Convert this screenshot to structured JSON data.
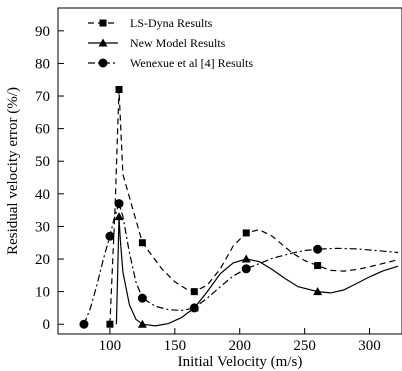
{
  "chart_data": {
    "type": "line",
    "xlabel": "Initial Velocity (m/s)",
    "ylabel": "Residual velocity error (%/)",
    "xlim": [
      60,
      325
    ],
    "ylim": [
      -3,
      97
    ],
    "xticks": [
      100,
      150,
      200,
      250,
      300
    ],
    "yticks": [
      0,
      10,
      20,
      30,
      40,
      50,
      60,
      70,
      80,
      90
    ],
    "grid": false,
    "legend_position": "top-center",
    "series": [
      {
        "name": "LS-Dyna Results",
        "line_style": "dashed",
        "marker": "square",
        "color": "#000000",
        "points": [
          [
            100,
            0
          ],
          [
            107,
            72
          ],
          [
            125,
            25
          ],
          [
            165,
            10
          ],
          [
            205,
            28
          ],
          [
            260,
            18
          ]
        ],
        "curve": [
          [
            100,
            0
          ],
          [
            104,
            36
          ],
          [
            107,
            72
          ],
          [
            110,
            46
          ],
          [
            125,
            25
          ],
          [
            140,
            17
          ],
          [
            150,
            13
          ],
          [
            160,
            10.5
          ],
          [
            165,
            10
          ],
          [
            175,
            12
          ],
          [
            185,
            17
          ],
          [
            195,
            24
          ],
          [
            205,
            28
          ],
          [
            215,
            29
          ],
          [
            225,
            27
          ],
          [
            240,
            22
          ],
          [
            250,
            19.5
          ],
          [
            260,
            18
          ],
          [
            270,
            16.5
          ],
          [
            280,
            16.3
          ],
          [
            290,
            16.8
          ],
          [
            300,
            17.6
          ],
          [
            310,
            18.6
          ],
          [
            322,
            19.8
          ]
        ]
      },
      {
        "name": "New Model Results",
        "line_style": "solid",
        "marker": "triangle",
        "color": "#000000",
        "points": [
          [
            107,
            33
          ],
          [
            125,
            0
          ],
          [
            165,
            5
          ],
          [
            205,
            20
          ],
          [
            260,
            10
          ]
        ],
        "curve": [
          [
            105,
            0
          ],
          [
            106,
            16
          ],
          [
            107,
            33
          ],
          [
            108,
            26
          ],
          [
            110,
            16
          ],
          [
            115,
            6
          ],
          [
            120,
            1.5
          ],
          [
            125,
            0
          ],
          [
            135,
            -0.5
          ],
          [
            145,
            0.2
          ],
          [
            155,
            2
          ],
          [
            165,
            5
          ],
          [
            175,
            10
          ],
          [
            185,
            15.5
          ],
          [
            195,
            18.8
          ],
          [
            205,
            20
          ],
          [
            215,
            19.2
          ],
          [
            225,
            16.8
          ],
          [
            235,
            14
          ],
          [
            245,
            11.5
          ],
          [
            260,
            10
          ],
          [
            270,
            9.6
          ],
          [
            280,
            10.5
          ],
          [
            290,
            12.5
          ],
          [
            300,
            14.5
          ],
          [
            310,
            16.3
          ],
          [
            322,
            17.8
          ]
        ]
      },
      {
        "name": "Wenexue et al [4] Results",
        "line_style": "dashdot",
        "marker": "circle",
        "color": "#000000",
        "points": [
          [
            80,
            0
          ],
          [
            100,
            27
          ],
          [
            107,
            37
          ],
          [
            125,
            8
          ],
          [
            165,
            5
          ],
          [
            205,
            17
          ],
          [
            260,
            23
          ]
        ],
        "curve": [
          [
            80,
            0
          ],
          [
            85,
            5
          ],
          [
            90,
            12
          ],
          [
            95,
            20
          ],
          [
            100,
            27
          ],
          [
            103,
            32
          ],
          [
            107,
            37
          ],
          [
            110,
            33
          ],
          [
            115,
            22
          ],
          [
            120,
            13
          ],
          [
            125,
            8
          ],
          [
            135,
            5.5
          ],
          [
            145,
            4.5
          ],
          [
            155,
            4.2
          ],
          [
            165,
            5
          ],
          [
            175,
            8
          ],
          [
            185,
            11.5
          ],
          [
            195,
            14.8
          ],
          [
            205,
            17
          ],
          [
            215,
            18.6
          ],
          [
            225,
            20.2
          ],
          [
            240,
            21.8
          ],
          [
            250,
            22.6
          ],
          [
            260,
            23
          ],
          [
            275,
            23.3
          ],
          [
            290,
            23.1
          ],
          [
            305,
            22.6
          ],
          [
            322,
            22
          ]
        ]
      }
    ]
  }
}
